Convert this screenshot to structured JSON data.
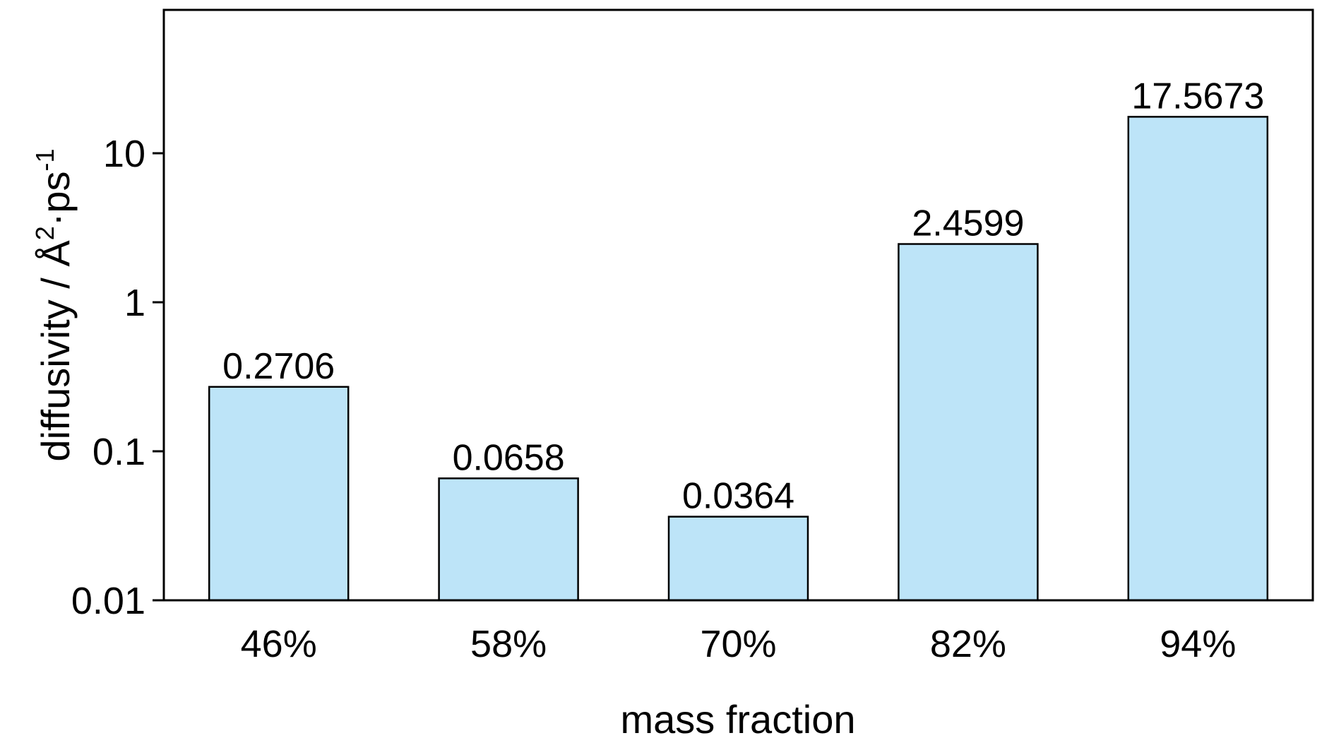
{
  "chart_data": {
    "type": "bar",
    "categories": [
      "46%",
      "58%",
      "70%",
      "82%",
      "94%"
    ],
    "values": [
      0.2706,
      0.0658,
      0.0364,
      2.4599,
      17.5673
    ],
    "value_labels": [
      "0.2706",
      "0.0658",
      "0.0364",
      "2.4599",
      "17.5673"
    ],
    "title": "",
    "xlabel": "mass fraction",
    "ylabel": {
      "prefix": "diffusivity / Å",
      "sup1": "2",
      "mid": "·ps",
      "sup2": "-1"
    },
    "yscale": "log",
    "ylim": [
      0.01,
      100
    ],
    "yticks": [
      0.01,
      0.1,
      1,
      10
    ],
    "ytick_labels": [
      "0.01",
      "0.1",
      "1",
      "10"
    ],
    "grid": false,
    "legend": "none",
    "bar_color": "#bde4f8",
    "edge_color": "#000000"
  }
}
